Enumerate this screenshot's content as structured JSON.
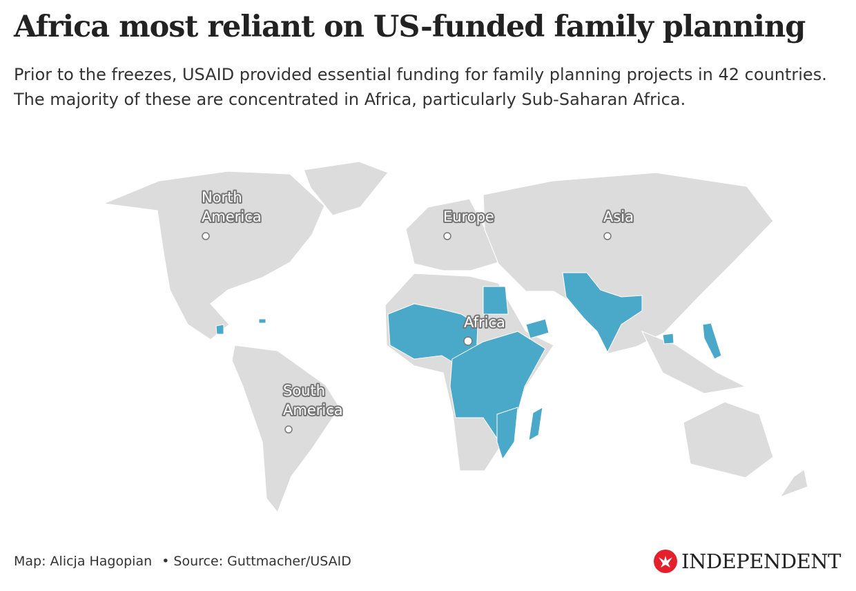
{
  "title": "Africa most reliant on US-funded family planning",
  "subtitle": "Prior to the freezes, USAID provided essential funding for family planning projects in 42 countries. The majority of these are concentrated in Africa, particularly Sub-Saharan Africa.",
  "map": {
    "highlight_color": "#4aa8c8",
    "land_color": "#dcdcdc",
    "highlight_meaning": "Countries receiving USAID family planning funding",
    "labels": [
      {
        "line1": "North",
        "line2": "America"
      },
      {
        "line1": "Europe",
        "line2": ""
      },
      {
        "line1": "Asia",
        "line2": ""
      },
      {
        "line1": "Africa",
        "line2": ""
      },
      {
        "line1": "South",
        "line2": "America"
      }
    ]
  },
  "footer": {
    "credit": "Map: Alicja Hagopian",
    "source": "• Source: Guttmacher/USAID"
  },
  "logo": {
    "text": "INDEPENDENT",
    "icon": "eagle-icon",
    "color": "#e4202c"
  }
}
